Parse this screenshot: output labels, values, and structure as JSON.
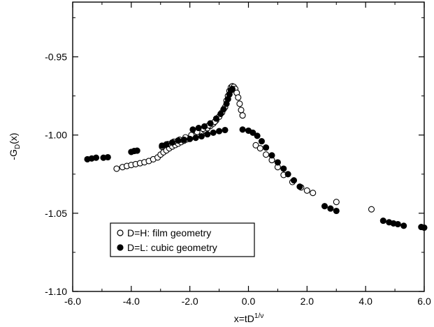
{
  "chart_data": {
    "type": "scatter",
    "xlabel": "x=tD",
    "xlabel_sup": "1/ν",
    "ylabel": "-G",
    "ylabel_sub": "D",
    "ylabel_suffix": "(x)",
    "xlim": [
      -6.0,
      6.0
    ],
    "ylim": [
      -1.1,
      -0.915
    ],
    "x_ticks": [
      -6.0,
      -4.0,
      -2.0,
      0.0,
      2.0,
      4.0,
      6.0
    ],
    "x_tick_labels": [
      "-6.0",
      "-4.0",
      "-2.0",
      "0.0",
      "2.0",
      "4.0",
      "6.0"
    ],
    "y_ticks": [
      -1.1,
      -1.05,
      -1.0,
      -0.95
    ],
    "y_tick_labels": [
      "-1.10",
      "-1.05",
      "-1.00",
      "-0.95"
    ],
    "grid": false,
    "legend_position": "bottom-left",
    "series": [
      {
        "name": "D=H: film geometry",
        "marker": "open-circle",
        "color": "#000000",
        "points": [
          [
            -4.5,
            -1.0215
          ],
          [
            -4.3,
            -1.0205
          ],
          [
            -4.15,
            -1.0198
          ],
          [
            -4.0,
            -1.0192
          ],
          [
            -3.85,
            -1.0186
          ],
          [
            -3.7,
            -1.018
          ],
          [
            -3.55,
            -1.0174
          ],
          [
            -3.4,
            -1.0166
          ],
          [
            -3.25,
            -1.0155
          ],
          [
            -3.1,
            -1.0143
          ],
          [
            -3.0,
            -1.0125
          ],
          [
            -2.9,
            -1.011
          ],
          [
            -2.8,
            -1.0098
          ],
          [
            -2.7,
            -1.0085
          ],
          [
            -2.6,
            -1.0073
          ],
          [
            -2.5,
            -1.0064
          ],
          [
            -2.4,
            -1.0055
          ],
          [
            -2.3,
            -1.0045
          ],
          [
            -2.2,
            -1.0036
          ],
          [
            -2.1,
            -1.0027
          ],
          [
            -2.0,
            -1.0018
          ],
          [
            -1.9,
            -1.001
          ],
          [
            -1.8,
            -1.0
          ],
          [
            -1.7,
            -0.999
          ],
          [
            -1.6,
            -0.998
          ],
          [
            -1.5,
            -0.9968
          ],
          [
            -1.4,
            -0.9956
          ],
          [
            -1.3,
            -0.9942
          ],
          [
            -1.2,
            -0.9926
          ],
          [
            -1.1,
            -0.9905
          ],
          [
            -1.0,
            -0.9883
          ],
          [
            -0.9,
            -0.9855
          ],
          [
            -0.8,
            -0.9822
          ],
          [
            -0.75,
            -0.978
          ],
          [
            -0.7,
            -0.975
          ],
          [
            -0.65,
            -0.9718
          ],
          [
            -0.6,
            -0.9695
          ],
          [
            -0.55,
            -0.9688
          ],
          [
            -0.5,
            -0.9692
          ],
          [
            -0.45,
            -0.9705
          ],
          [
            -0.4,
            -0.973
          ],
          [
            -0.35,
            -0.976
          ],
          [
            -0.3,
            -0.98
          ],
          [
            -0.25,
            -0.984
          ],
          [
            -0.2,
            -0.9875
          ],
          [
            -2.95,
            -1.0075
          ],
          [
            -2.75,
            -1.0058
          ],
          [
            -2.55,
            -1.0043
          ],
          [
            -2.35,
            -1.003
          ],
          [
            -2.15,
            -1.0015
          ],
          [
            -1.95,
            -1.0
          ],
          [
            -1.75,
            -0.998
          ],
          [
            -1.55,
            -0.996
          ],
          [
            -1.35,
            -0.9938
          ],
          [
            -1.15,
            -0.9915
          ],
          [
            0.25,
            -1.0065
          ],
          [
            0.4,
            -1.0085
          ],
          [
            0.6,
            -1.0125
          ],
          [
            0.8,
            -1.016
          ],
          [
            1.0,
            -1.0205
          ],
          [
            1.2,
            -1.0255
          ],
          [
            1.5,
            -1.03
          ],
          [
            1.8,
            -1.0335
          ],
          [
            2.0,
            -1.0355
          ],
          [
            2.2,
            -1.037
          ],
          [
            3.0,
            -1.0428
          ],
          [
            4.2,
            -1.0475
          ]
        ]
      },
      {
        "name": "D=L: cubic geometry",
        "marker": "filled-circle",
        "color": "#000000",
        "points": [
          [
            -5.5,
            -1.0155
          ],
          [
            -5.35,
            -1.015
          ],
          [
            -5.2,
            -1.0145
          ],
          [
            -4.95,
            -1.0145
          ],
          [
            -4.8,
            -1.0142
          ],
          [
            -4.0,
            -1.0108
          ],
          [
            -3.9,
            -1.0102
          ],
          [
            -3.8,
            -1.01
          ],
          [
            -2.95,
            -1.0068
          ],
          [
            -2.8,
            -1.006
          ],
          [
            -2.6,
            -1.0048
          ],
          [
            -2.4,
            -1.0035
          ],
          [
            -2.2,
            -1.003
          ],
          [
            -2.0,
            -1.0025
          ],
          [
            -1.8,
            -1.0018
          ],
          [
            -1.6,
            -1.0008
          ],
          [
            -1.4,
            -0.9995
          ],
          [
            -1.2,
            -0.9985
          ],
          [
            -1.0,
            -0.9975
          ],
          [
            -0.8,
            -0.9968
          ],
          [
            -1.9,
            -0.9965
          ],
          [
            -1.7,
            -0.9955
          ],
          [
            -1.5,
            -0.9945
          ],
          [
            -1.3,
            -0.9925
          ],
          [
            -1.1,
            -0.9895
          ],
          [
            -0.95,
            -0.9865
          ],
          [
            -0.85,
            -0.9835
          ],
          [
            -0.75,
            -0.98
          ],
          [
            -0.7,
            -0.977
          ],
          [
            -0.65,
            -0.974
          ],
          [
            -0.6,
            -0.9715
          ],
          [
            -0.55,
            -0.9705
          ],
          [
            -0.2,
            -0.9965
          ],
          [
            0.0,
            -0.9972
          ],
          [
            0.15,
            -0.9985
          ],
          [
            0.3,
            -1.0005
          ],
          [
            0.45,
            -1.004
          ],
          [
            0.6,
            -1.008
          ],
          [
            0.8,
            -1.013
          ],
          [
            1.0,
            -1.0175
          ],
          [
            1.2,
            -1.0215
          ],
          [
            1.35,
            -1.025
          ],
          [
            1.55,
            -1.029
          ],
          [
            1.75,
            -1.033
          ],
          [
            2.6,
            -1.0455
          ],
          [
            2.8,
            -1.047
          ],
          [
            3.0,
            -1.0485
          ],
          [
            4.6,
            -1.0548
          ],
          [
            4.8,
            -1.0558
          ],
          [
            4.95,
            -1.0565
          ],
          [
            5.1,
            -1.057
          ],
          [
            5.3,
            -1.058
          ],
          [
            5.9,
            -1.0588
          ],
          [
            6.0,
            -1.0592
          ]
        ]
      }
    ]
  }
}
